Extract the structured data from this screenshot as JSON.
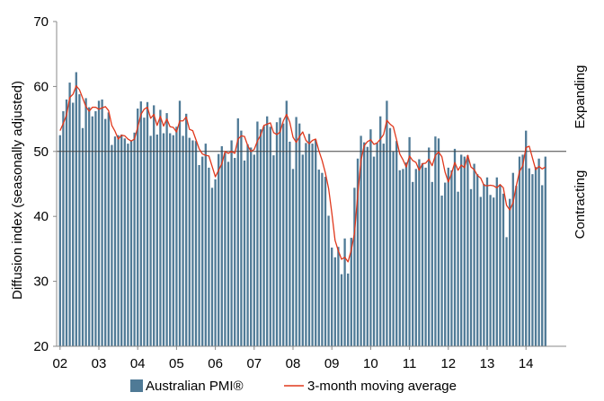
{
  "chart_data": {
    "type": "bar",
    "ylabel": "Diffusion index (seasonally adjusted)",
    "ylim": [
      20,
      70
    ],
    "yticks": [
      20,
      30,
      40,
      50,
      60,
      70
    ],
    "xticks": [
      "02",
      "03",
      "04",
      "05",
      "06",
      "07",
      "08",
      "09",
      "10",
      "11",
      "12",
      "13",
      "14"
    ],
    "reference_line": 50,
    "zone_labels": {
      "upper": "Expanding",
      "lower": "Contracting"
    },
    "grid": false,
    "legend_position": "bottom",
    "series": [
      {
        "name": "Australian PMI®",
        "type": "bar",
        "color": "#4f7a96",
        "start": "2002-01",
        "values": [
          52.5,
          56.2,
          58,
          60.6,
          57.5,
          62.2,
          58.8,
          53.6,
          58.2,
          56.8,
          55.4,
          56.2,
          57.8,
          58,
          55,
          56,
          51,
          52.3,
          52.5,
          52.6,
          52,
          51.2,
          51.7,
          52.9,
          56.6,
          57.7,
          55.2,
          57.6,
          52.4,
          57.1,
          52.6,
          56.4,
          52.8,
          55.9,
          52.8,
          52.5,
          53.8,
          57.8,
          52.4,
          55.8,
          52.1,
          51.7,
          51.6,
          47.9,
          49.2,
          51.2,
          47.5,
          44.4,
          45.7,
          49.6,
          50.8,
          49.8,
          48.4,
          51.7,
          49,
          55.1,
          53.2,
          48.6,
          51.1,
          50.6,
          49.5,
          54.6,
          53.4,
          53.9,
          55.4,
          53.8,
          49.4,
          54.5,
          55.2,
          54.3,
          57.8,
          51.5,
          47.3,
          55.3,
          54.3,
          49.5,
          51.3,
          52.7,
          51.2,
          51.8,
          47.2,
          46.7,
          46.1,
          40.1,
          35.2,
          33.7,
          35.3,
          31.1,
          36.6,
          31.2,
          36.7,
          44.4,
          48.9,
          52.4,
          51.4,
          50.7,
          53.4,
          49.2,
          51.3,
          55.4,
          51.2,
          57.8,
          53.6,
          50,
          51.6,
          47.1,
          47.3,
          48.3,
          52.2,
          45.3,
          47.3,
          48.8,
          48.2,
          47.5,
          50.6,
          45.3,
          52.3,
          52,
          43.2,
          45.2,
          47.5,
          47.1,
          50.4,
          43.8,
          49.5,
          49.2,
          49.4,
          44.2,
          48.1,
          46.5,
          43,
          45,
          46,
          43.3,
          42.9,
          46,
          44.8,
          43.5,
          36.8,
          42.7,
          46.7,
          44.7,
          49.2,
          49.5,
          53.2,
          47.4,
          46.5,
          47.6,
          48.9,
          44.8,
          49.2
        ]
      },
      {
        "name": "3-month moving average",
        "type": "line",
        "color": "#e0381c",
        "start": "2002-01",
        "values": [
          53.2,
          54.3,
          55.6,
          58.3,
          58.8,
          60.1,
          59.5,
          58.2,
          56.9,
          56.2,
          56.8,
          56.8,
          56.5,
          56.7,
          56.9,
          56.3,
          54,
          53.1,
          51.9,
          52.5,
          52.4,
          51.9,
          51.6,
          51.9,
          53.7,
          55.7,
          56.5,
          56.8,
          55.1,
          55.7,
          54,
          55.4,
          53.9,
          55,
          53.8,
          53.7,
          53,
          54.7,
          54.7,
          55.3,
          53.4,
          53.2,
          51.8,
          50.4,
          49.6,
          49.4,
          49.3,
          47.7,
          46.1,
          47.1,
          48.1,
          50,
          49.7,
          50,
          49.7,
          51.9,
          52.4,
          52.3,
          50.9,
          50,
          50.3,
          51.6,
          52.5,
          54,
          54.2,
          54.4,
          52.9,
          52.6,
          53,
          54.7,
          55.7,
          54.5,
          52.2,
          51.4,
          52.3,
          53,
          51.7,
          51.2,
          51.7,
          51.9,
          50.1,
          48.6,
          46.7,
          44.3,
          40.5,
          36.3,
          34.7,
          33.4,
          33.7,
          33,
          34.8,
          37.4,
          43.3,
          48.6,
          50.9,
          51.5,
          51.8,
          51.1,
          51.3,
          51.9,
          52.6,
          54.8,
          54.2,
          53.8,
          51.8,
          49.6,
          48.7,
          47.6,
          49.3,
          48.6,
          48.3,
          47.1,
          48.1,
          48.2,
          48.8,
          47.8,
          49.4,
          49.9,
          49.2,
          46.8,
          45.3,
          46.6,
          48.3,
          47.1,
          47.9,
          47.5,
          49.4,
          47.6,
          47.2,
          46.3,
          45.9,
          44.8,
          44.7,
          44.8,
          44.7,
          44.4,
          44.9,
          44.4,
          41.7,
          41,
          42.1,
          44.7,
          46.9,
          47.8,
          50.6,
          50.8,
          49,
          47.2,
          47.7,
          47.3,
          47.6
        ]
      }
    ]
  }
}
